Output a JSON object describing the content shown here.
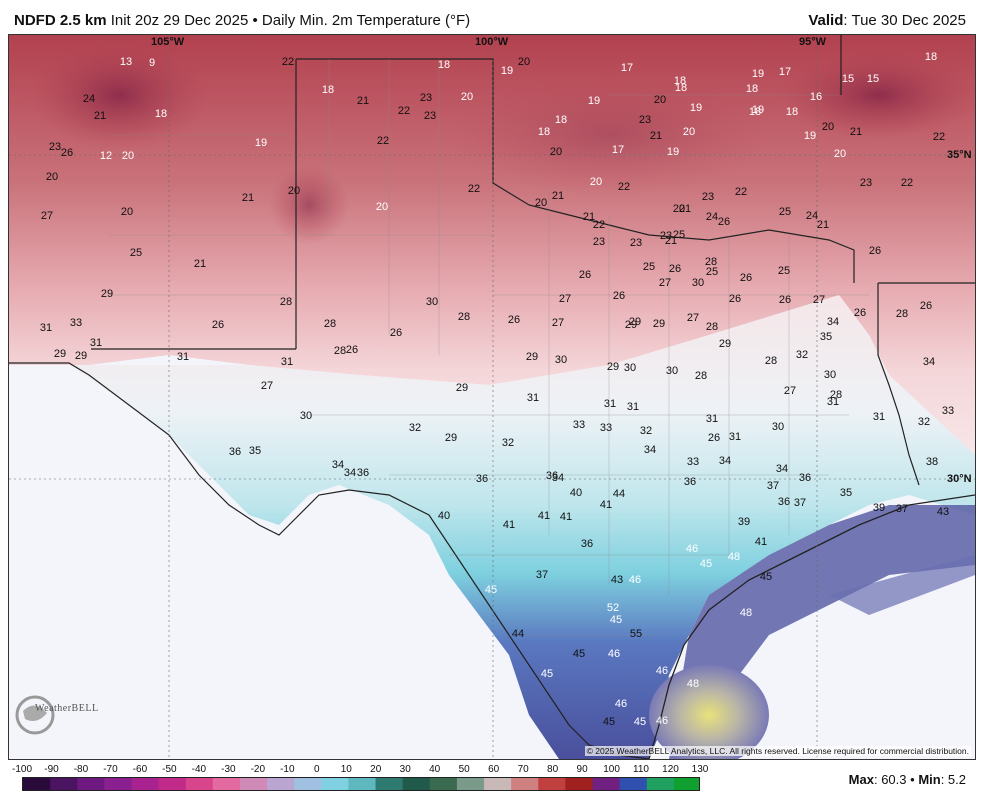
{
  "header": {
    "model": "NDFD 2.5 km",
    "init": "Init 20z 29 Dec 2025",
    "separator": "•",
    "product": "Daily Min. 2m Temperature (°F)",
    "valid_label": "Valid",
    "valid_value": ": Tue 30 Dec 2025"
  },
  "map": {
    "graticule_labels": [
      "105°W",
      "100°W",
      "95°W",
      "35°N",
      "30°N"
    ],
    "copyright": "© 2025 WeatherBELL Analytics, LLC. All rights reserved. License required for commercial distribution.",
    "logo_text": "WeatherBELL"
  },
  "colorbar": {
    "ticks": [
      "-100",
      "-90",
      "-80",
      "-70",
      "-60",
      "-50",
      "-40",
      "-30",
      "-20",
      "-10",
      "0",
      "10",
      "20",
      "30",
      "40",
      "50",
      "60",
      "70",
      "80",
      "90",
      "100",
      "110",
      "120",
      "130"
    ],
    "colors": [
      "#2a0a3a",
      "#4b1460",
      "#6e1a80",
      "#8a1f8f",
      "#a8238f",
      "#c22a8a",
      "#d8458a",
      "#e26aa0",
      "#d08ab8",
      "#b9a6d0",
      "#9fc0e0",
      "#7fd0e0",
      "#5fb8c0",
      "#2f7a70",
      "#1f5a4a",
      "#3a6a50",
      "#7a9a8a",
      "#c8b8b8",
      "#d08080",
      "#c04040",
      "#a02020",
      "#702080",
      "#3050b0",
      "#20a060",
      "#10a030"
    ],
    "max_label": "Max",
    "max_value": ": 60.3",
    "sep": "•",
    "min_label": "Min",
    "min_value": ": 5.2"
  },
  "temps": [
    {
      "t": "13",
      "c": "w"
    },
    {
      "t": "9",
      "c": "w"
    },
    {
      "t": "22",
      "c": "d"
    },
    {
      "t": "18",
      "c": "w"
    },
    {
      "t": "19",
      "c": "w"
    },
    {
      "t": "20",
      "c": "d"
    },
    {
      "t": "17",
      "c": "w"
    },
    {
      "t": "18",
      "c": "w"
    },
    {
      "t": "19",
      "c": "w"
    },
    {
      "t": "17",
      "c": "w"
    },
    {
      "t": "15",
      "c": "w"
    },
    {
      "t": "15",
      "c": "w"
    },
    {
      "t": "18",
      "c": "w"
    },
    {
      "t": "24",
      "c": "d"
    },
    {
      "t": "21",
      "c": "d"
    },
    {
      "t": "18",
      "c": "w"
    },
    {
      "t": "18",
      "c": "w"
    },
    {
      "t": "21",
      "c": "d"
    },
    {
      "t": "22",
      "c": "d"
    },
    {
      "t": "23",
      "c": "d"
    },
    {
      "t": "23",
      "c": "d"
    },
    {
      "t": "20",
      "c": "w"
    },
    {
      "t": "19",
      "c": "w"
    },
    {
      "t": "20",
      "c": "d"
    },
    {
      "t": "18",
      "c": "w"
    },
    {
      "t": "19",
      "c": "w"
    },
    {
      "t": "18",
      "c": "w"
    },
    {
      "t": "19",
      "c": "w"
    },
    {
      "t": "16",
      "c": "w"
    },
    {
      "t": "23",
      "c": "d"
    },
    {
      "t": "26",
      "c": "d"
    },
    {
      "t": "12",
      "c": "w"
    },
    {
      "t": "20",
      "c": "w"
    },
    {
      "t": "19",
      "c": "w"
    },
    {
      "t": "22",
      "c": "d"
    },
    {
      "t": "18",
      "c": "w"
    },
    {
      "t": "23",
      "c": "d"
    },
    {
      "t": "20",
      "c": "w"
    },
    {
      "t": "18",
      "c": "w"
    },
    {
      "t": "18",
      "c": "w"
    },
    {
      "t": "20",
      "c": "d"
    },
    {
      "t": "21",
      "c": "d"
    },
    {
      "t": "22",
      "c": "d"
    },
    {
      "t": "20",
      "c": "d"
    },
    {
      "t": "18",
      "c": "w"
    },
    {
      "t": "20",
      "c": "d"
    },
    {
      "t": "19",
      "c": "w"
    },
    {
      "t": "17",
      "c": "w"
    },
    {
      "t": "21",
      "c": "d"
    },
    {
      "t": "19",
      "c": "w"
    },
    {
      "t": "20",
      "c": "w"
    },
    {
      "t": "27",
      "c": "d"
    },
    {
      "t": "20",
      "c": "d"
    },
    {
      "t": "21",
      "c": "d"
    },
    {
      "t": "20",
      "c": "d"
    },
    {
      "t": "20",
      "c": "w"
    },
    {
      "t": "22",
      "c": "d"
    },
    {
      "t": "20",
      "c": "d"
    },
    {
      "t": "21",
      "c": "d"
    },
    {
      "t": "20",
      "c": "w"
    },
    {
      "t": "22",
      "c": "d"
    },
    {
      "t": "21",
      "c": "d"
    },
    {
      "t": "23",
      "c": "d"
    },
    {
      "t": "22",
      "c": "d"
    },
    {
      "t": "21",
      "c": "d"
    },
    {
      "t": "23",
      "c": "d"
    },
    {
      "t": "22",
      "c": "d"
    },
    {
      "t": "25",
      "c": "d"
    },
    {
      "t": "21",
      "c": "d"
    },
    {
      "t": "21",
      "c": "d"
    },
    {
      "t": "22",
      "c": "d"
    },
    {
      "t": "20",
      "c": "d"
    },
    {
      "t": "23",
      "c": "d"
    },
    {
      "t": "24",
      "c": "d"
    },
    {
      "t": "26",
      "c": "d"
    },
    {
      "t": "25",
      "c": "d"
    },
    {
      "t": "24",
      "c": "d"
    },
    {
      "t": "26",
      "c": "d"
    },
    {
      "t": "29",
      "c": "d"
    },
    {
      "t": "23",
      "c": "d"
    },
    {
      "t": "21",
      "c": "d"
    },
    {
      "t": "25",
      "c": "d"
    },
    {
      "t": "28",
      "c": "d"
    },
    {
      "t": "23",
      "c": "d"
    },
    {
      "t": "26",
      "c": "d"
    },
    {
      "t": "25",
      "c": "d"
    },
    {
      "t": "26",
      "c": "d"
    },
    {
      "t": "25",
      "c": "d"
    },
    {
      "t": "26",
      "c": "d"
    },
    {
      "t": "25",
      "c": "d"
    },
    {
      "t": "31",
      "c": "d"
    },
    {
      "t": "33",
      "c": "d"
    },
    {
      "t": "26",
      "c": "d"
    },
    {
      "t": "28",
      "c": "d"
    },
    {
      "t": "30",
      "c": "d"
    },
    {
      "t": "28",
      "c": "d"
    },
    {
      "t": "27",
      "c": "d"
    },
    {
      "t": "26",
      "c": "d"
    },
    {
      "t": "27",
      "c": "d"
    },
    {
      "t": "30",
      "c": "d"
    },
    {
      "t": "26",
      "c": "d"
    },
    {
      "t": "26",
      "c": "d"
    },
    {
      "t": "27",
      "c": "d"
    },
    {
      "t": "26",
      "c": "d"
    },
    {
      "t": "28",
      "c": "d"
    },
    {
      "t": "26",
      "c": "d"
    },
    {
      "t": "31",
      "c": "d"
    },
    {
      "t": "28",
      "c": "d"
    },
    {
      "t": "26",
      "c": "d"
    },
    {
      "t": "26",
      "c": "d"
    },
    {
      "t": "27",
      "c": "d"
    },
    {
      "t": "29",
      "c": "d"
    },
    {
      "t": "29",
      "c": "d"
    },
    {
      "t": "27",
      "c": "d"
    },
    {
      "t": "28",
      "c": "d"
    },
    {
      "t": "34",
      "c": "d"
    },
    {
      "t": "35",
      "c": "d"
    },
    {
      "t": "29",
      "c": "d"
    },
    {
      "t": "29",
      "c": "d"
    },
    {
      "t": "31",
      "c": "d"
    },
    {
      "t": "31",
      "c": "d"
    },
    {
      "t": "28",
      "c": "d"
    },
    {
      "t": "26",
      "c": "d"
    },
    {
      "t": "29",
      "c": "d"
    },
    {
      "t": "30",
      "c": "d"
    },
    {
      "t": "29",
      "c": "d"
    },
    {
      "t": "29",
      "c": "d"
    },
    {
      "t": "30",
      "c": "d"
    },
    {
      "t": "32",
      "c": "d"
    },
    {
      "t": "27",
      "c": "d"
    },
    {
      "t": "29",
      "c": "d"
    },
    {
      "t": "29",
      "c": "d"
    },
    {
      "t": "30",
      "c": "d"
    },
    {
      "t": "28",
      "c": "d"
    },
    {
      "t": "28",
      "c": "d"
    },
    {
      "t": "30",
      "c": "d"
    },
    {
      "t": "27",
      "c": "d"
    },
    {
      "t": "28",
      "c": "d"
    },
    {
      "t": "34",
      "c": "d"
    },
    {
      "t": "31",
      "c": "d"
    },
    {
      "t": "30",
      "c": "d"
    },
    {
      "t": "31",
      "c": "d"
    },
    {
      "t": "31",
      "c": "d"
    },
    {
      "t": "31",
      "c": "d"
    },
    {
      "t": "31",
      "c": "d"
    },
    {
      "t": "30",
      "c": "d"
    },
    {
      "t": "31",
      "c": "d"
    },
    {
      "t": "32",
      "c": "d"
    },
    {
      "t": "33",
      "c": "d"
    },
    {
      "t": "32",
      "c": "d"
    },
    {
      "t": "29",
      "c": "d"
    },
    {
      "t": "32",
      "c": "d"
    },
    {
      "t": "33",
      "c": "d"
    },
    {
      "t": "33",
      "c": "d"
    },
    {
      "t": "32",
      "c": "d"
    },
    {
      "t": "26",
      "c": "d"
    },
    {
      "t": "31",
      "c": "d"
    },
    {
      "t": "36",
      "c": "d"
    },
    {
      "t": "35",
      "c": "d"
    },
    {
      "t": "34",
      "c": "d"
    },
    {
      "t": "34",
      "c": "d"
    },
    {
      "t": "34",
      "c": "d"
    },
    {
      "t": "33",
      "c": "d"
    },
    {
      "t": "34",
      "c": "d"
    },
    {
      "t": "34",
      "c": "d"
    },
    {
      "t": "36",
      "c": "d"
    },
    {
      "t": "38",
      "c": "d"
    },
    {
      "t": "36",
      "c": "d"
    },
    {
      "t": "34",
      "c": "d"
    },
    {
      "t": "36",
      "c": "d"
    },
    {
      "t": "36",
      "c": "d"
    },
    {
      "t": "36",
      "c": "d"
    },
    {
      "t": "37",
      "c": "d"
    },
    {
      "t": "36",
      "c": "d"
    },
    {
      "t": "37",
      "c": "d"
    },
    {
      "t": "35",
      "c": "d"
    },
    {
      "t": "39",
      "c": "d"
    },
    {
      "t": "40",
      "c": "d"
    },
    {
      "t": "44",
      "c": "d"
    },
    {
      "t": "41",
      "c": "d"
    },
    {
      "t": "40",
      "c": "d"
    },
    {
      "t": "41",
      "c": "d"
    },
    {
      "t": "41",
      "c": "d"
    },
    {
      "t": "41",
      "c": "d"
    },
    {
      "t": "37",
      "c": "d"
    },
    {
      "t": "43",
      "c": "d"
    },
    {
      "t": "39",
      "c": "d"
    },
    {
      "t": "36",
      "c": "d"
    },
    {
      "t": "46",
      "c": "w"
    },
    {
      "t": "41",
      "c": "d"
    },
    {
      "t": "37",
      "c": "d"
    },
    {
      "t": "45",
      "c": "w"
    },
    {
      "t": "48",
      "c": "w"
    },
    {
      "t": "43",
      "c": "d"
    },
    {
      "t": "44",
      "c": "d"
    },
    {
      "t": "46",
      "c": "w"
    },
    {
      "t": "45",
      "c": "w"
    },
    {
      "t": "45",
      "c": "w"
    },
    {
      "t": "52",
      "c": "w"
    },
    {
      "t": "45",
      "c": "w"
    },
    {
      "t": "48",
      "c": "w"
    },
    {
      "t": "45",
      "c": "d"
    },
    {
      "t": "45",
      "c": "d"
    },
    {
      "t": "45",
      "c": "d"
    },
    {
      "t": "46",
      "c": "w"
    },
    {
      "t": "55",
      "c": "d"
    },
    {
      "t": "46",
      "c": "w"
    },
    {
      "t": "48",
      "c": "w"
    },
    {
      "t": "46",
      "c": "w"
    },
    {
      "t": "45",
      "c": "w"
    },
    {
      "t": "46",
      "c": "w"
    }
  ]
}
